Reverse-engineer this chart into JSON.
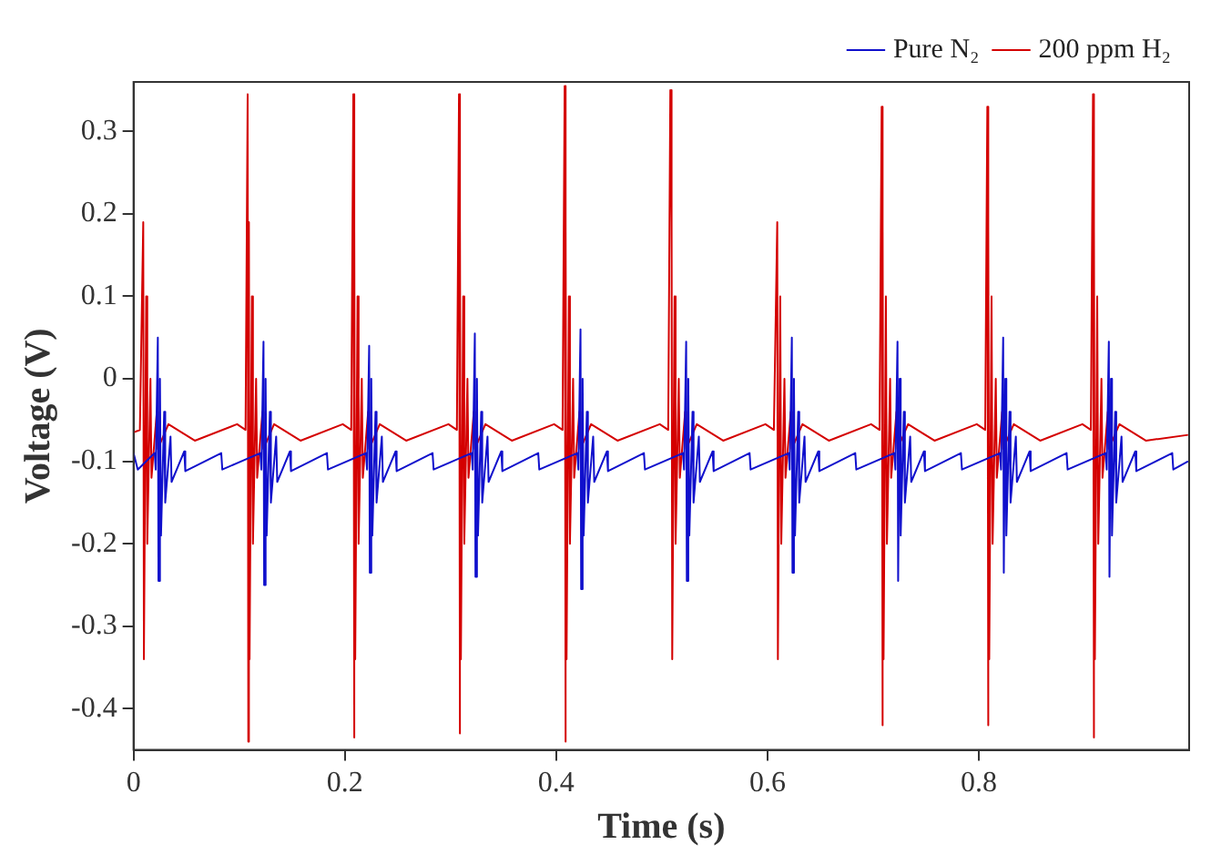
{
  "chart_data": {
    "type": "line",
    "xlabel": "Time (s)",
    "ylabel": "Voltage (V)",
    "xlim": [
      0,
      0.999
    ],
    "xticks": [
      0,
      0.2,
      0.4,
      0.6,
      0.8
    ],
    "ylim": [
      -0.45,
      0.36
    ],
    "yticks": [
      -0.4,
      -0.3,
      -0.2,
      -0.1,
      0,
      0.1,
      0.2,
      0.3
    ],
    "grid": false,
    "legend": "top right",
    "marker": "none",
    "line_style": "solid",
    "series": [
      {
        "name": "Pure N₂",
        "color": "#1010cc",
        "x": [
          0,
          0.004,
          0.02,
          0.021,
          0.023,
          0.0236,
          0.025,
          0.026,
          0.029,
          0.03,
          0.035,
          0.036,
          0.048,
          0.049,
          0.083,
          0.084,
          0.12,
          0.121,
          0.123,
          0.1236,
          0.125,
          0.126,
          0.129,
          0.13,
          0.135,
          0.136,
          0.148,
          0.149,
          0.183,
          0.184,
          0.22,
          0.221,
          0.223,
          0.2236,
          0.225,
          0.226,
          0.229,
          0.23,
          0.235,
          0.236,
          0.248,
          0.249,
          0.283,
          0.284,
          0.32,
          0.321,
          0.323,
          0.3236,
          0.325,
          0.326,
          0.329,
          0.33,
          0.335,
          0.336,
          0.348,
          0.349,
          0.383,
          0.384,
          0.42,
          0.421,
          0.423,
          0.4236,
          0.425,
          0.426,
          0.429,
          0.43,
          0.435,
          0.436,
          0.448,
          0.449,
          0.483,
          0.484,
          0.52,
          0.521,
          0.523,
          0.5236,
          0.525,
          0.526,
          0.529,
          0.53,
          0.535,
          0.536,
          0.548,
          0.549,
          0.583,
          0.584,
          0.62,
          0.621,
          0.623,
          0.6236,
          0.625,
          0.626,
          0.629,
          0.63,
          0.635,
          0.636,
          0.648,
          0.649,
          0.683,
          0.684,
          0.72,
          0.721,
          0.723,
          0.7236,
          0.725,
          0.726,
          0.729,
          0.73,
          0.735,
          0.736,
          0.748,
          0.749,
          0.783,
          0.784,
          0.82,
          0.821,
          0.823,
          0.8236,
          0.825,
          0.826,
          0.829,
          0.83,
          0.835,
          0.836,
          0.848,
          0.849,
          0.883,
          0.884,
          0.92,
          0.921,
          0.923,
          0.9236,
          0.925,
          0.926,
          0.929,
          0.93,
          0.935,
          0.936,
          0.948,
          0.949,
          0.983,
          0.984,
          0.998
        ],
        "values": [
          -0.09,
          -0.11,
          -0.09,
          -0.11,
          0.05,
          -0.245,
          0,
          -0.19,
          -0.04,
          -0.15,
          -0.07,
          -0.125,
          -0.088,
          -0.112,
          -0.09,
          -0.11,
          -0.09,
          -0.11,
          0.045,
          -0.25,
          0,
          -0.19,
          -0.04,
          -0.15,
          -0.07,
          -0.125,
          -0.088,
          -0.112,
          -0.09,
          -0.11,
          -0.09,
          -0.11,
          0.04,
          -0.235,
          0,
          -0.19,
          -0.04,
          -0.15,
          -0.07,
          -0.125,
          -0.088,
          -0.112,
          -0.09,
          -0.11,
          -0.09,
          -0.11,
          0.055,
          -0.24,
          0,
          -0.19,
          -0.04,
          -0.15,
          -0.07,
          -0.125,
          -0.088,
          -0.112,
          -0.09,
          -0.11,
          -0.09,
          -0.11,
          0.06,
          -0.255,
          0,
          -0.19,
          -0.04,
          -0.15,
          -0.07,
          -0.125,
          -0.088,
          -0.112,
          -0.09,
          -0.11,
          -0.09,
          -0.11,
          0.045,
          -0.245,
          0,
          -0.19,
          -0.04,
          -0.15,
          -0.07,
          -0.125,
          -0.088,
          -0.112,
          -0.09,
          -0.11,
          -0.09,
          -0.11,
          0.05,
          -0.235,
          0,
          -0.19,
          -0.04,
          -0.15,
          -0.07,
          -0.125,
          -0.088,
          -0.112,
          -0.09,
          -0.11,
          -0.09,
          -0.11,
          0.045,
          -0.245,
          0,
          -0.19,
          -0.04,
          -0.15,
          -0.07,
          -0.125,
          -0.088,
          -0.112,
          -0.09,
          -0.11,
          -0.09,
          -0.11,
          0.05,
          -0.235,
          0,
          -0.19,
          -0.04,
          -0.15,
          -0.07,
          -0.125,
          -0.088,
          -0.112,
          -0.09,
          -0.11,
          -0.09,
          -0.11,
          0.045,
          -0.24,
          0,
          -0.19,
          -0.04,
          -0.15,
          -0.07,
          -0.125,
          -0.088,
          -0.112,
          -0.09,
          -0.11,
          -0.1
        ]
      },
      {
        "name": "200 ppm H₂",
        "color": "#d40000",
        "x": [
          0,
          0.006,
          0.008,
          0.0086,
          0.0092,
          0.0098,
          0.012,
          0.013,
          0.016,
          0.017,
          0.022,
          0.023,
          0.033,
          0.058,
          0.098,
          0.106,
          0.108,
          0.1086,
          0.1092,
          0.1098,
          0.112,
          0.113,
          0.116,
          0.117,
          0.122,
          0.123,
          0.133,
          0.158,
          0.198,
          0.206,
          0.208,
          0.2086,
          0.2092,
          0.2098,
          0.212,
          0.213,
          0.216,
          0.217,
          0.222,
          0.223,
          0.233,
          0.258,
          0.298,
          0.306,
          0.308,
          0.3086,
          0.3092,
          0.3098,
          0.312,
          0.313,
          0.316,
          0.317,
          0.322,
          0.323,
          0.333,
          0.358,
          0.398,
          0.406,
          0.408,
          0.4086,
          0.4092,
          0.4098,
          0.412,
          0.413,
          0.416,
          0.417,
          0.422,
          0.423,
          0.433,
          0.458,
          0.498,
          0.506,
          0.508,
          0.5086,
          0.5092,
          0.5098,
          0.512,
          0.513,
          0.516,
          0.517,
          0.522,
          0.523,
          0.533,
          0.558,
          0.598,
          0.606,
          0.608,
          0.6086,
          0.6092,
          0.6098,
          0.612,
          0.613,
          0.616,
          0.617,
          0.622,
          0.623,
          0.633,
          0.658,
          0.698,
          0.706,
          0.708,
          0.7086,
          0.7092,
          0.7098,
          0.712,
          0.713,
          0.716,
          0.717,
          0.722,
          0.723,
          0.733,
          0.758,
          0.798,
          0.806,
          0.808,
          0.8086,
          0.8092,
          0.8098,
          0.812,
          0.813,
          0.816,
          0.817,
          0.822,
          0.823,
          0.833,
          0.858,
          0.898,
          0.906,
          0.908,
          0.9086,
          0.9092,
          0.9098,
          0.912,
          0.913,
          0.916,
          0.917,
          0.922,
          0.923,
          0.933,
          0.958,
          0.998
        ],
        "values": [
          -0.065,
          -0.062,
          null,
          null,
          0.19,
          -0.34,
          0.1,
          -0.2,
          0,
          -0.12,
          -0.04,
          -0.085,
          -0.055,
          -0.075,
          -0.055,
          -0.062,
          0.345,
          -0.44,
          0.19,
          -0.34,
          0.1,
          -0.2,
          0,
          -0.12,
          -0.04,
          -0.085,
          -0.055,
          -0.075,
          -0.055,
          -0.062,
          0.345,
          -0.435,
          0.19,
          -0.34,
          0.1,
          -0.2,
          0,
          -0.12,
          -0.04,
          -0.085,
          -0.055,
          -0.075,
          -0.055,
          -0.062,
          0.345,
          -0.43,
          0.19,
          -0.34,
          0.1,
          -0.2,
          0,
          -0.12,
          -0.04,
          -0.085,
          -0.055,
          -0.075,
          -0.055,
          -0.062,
          0.355,
          -0.44,
          0.19,
          -0.34,
          0.1,
          -0.2,
          0,
          -0.12,
          -0.04,
          -0.085,
          -0.055,
          -0.075,
          -0.055,
          -0.062,
          0.35,
          null,
          0.19,
          -0.34,
          0.1,
          -0.2,
          0,
          -0.12,
          -0.04,
          -0.085,
          -0.055,
          -0.075,
          -0.055,
          -0.062,
          null,
          null,
          0.19,
          -0.34,
          0.1,
          -0.2,
          0,
          -0.12,
          -0.04,
          -0.085,
          -0.055,
          -0.075,
          -0.055,
          -0.062,
          0.33,
          -0.42,
          0.19,
          -0.34,
          0.1,
          -0.2,
          0,
          -0.12,
          -0.04,
          -0.085,
          -0.055,
          -0.075,
          -0.055,
          -0.062,
          0.33,
          -0.42,
          0.19,
          -0.34,
          0.1,
          -0.2,
          0,
          -0.12,
          -0.04,
          -0.085,
          -0.055,
          -0.075,
          -0.055,
          -0.062,
          0.345,
          -0.435,
          0.19,
          -0.34,
          0.1,
          -0.2,
          0,
          -0.12,
          -0.04,
          -0.085,
          -0.055,
          -0.075,
          -0.068
        ]
      }
    ]
  }
}
